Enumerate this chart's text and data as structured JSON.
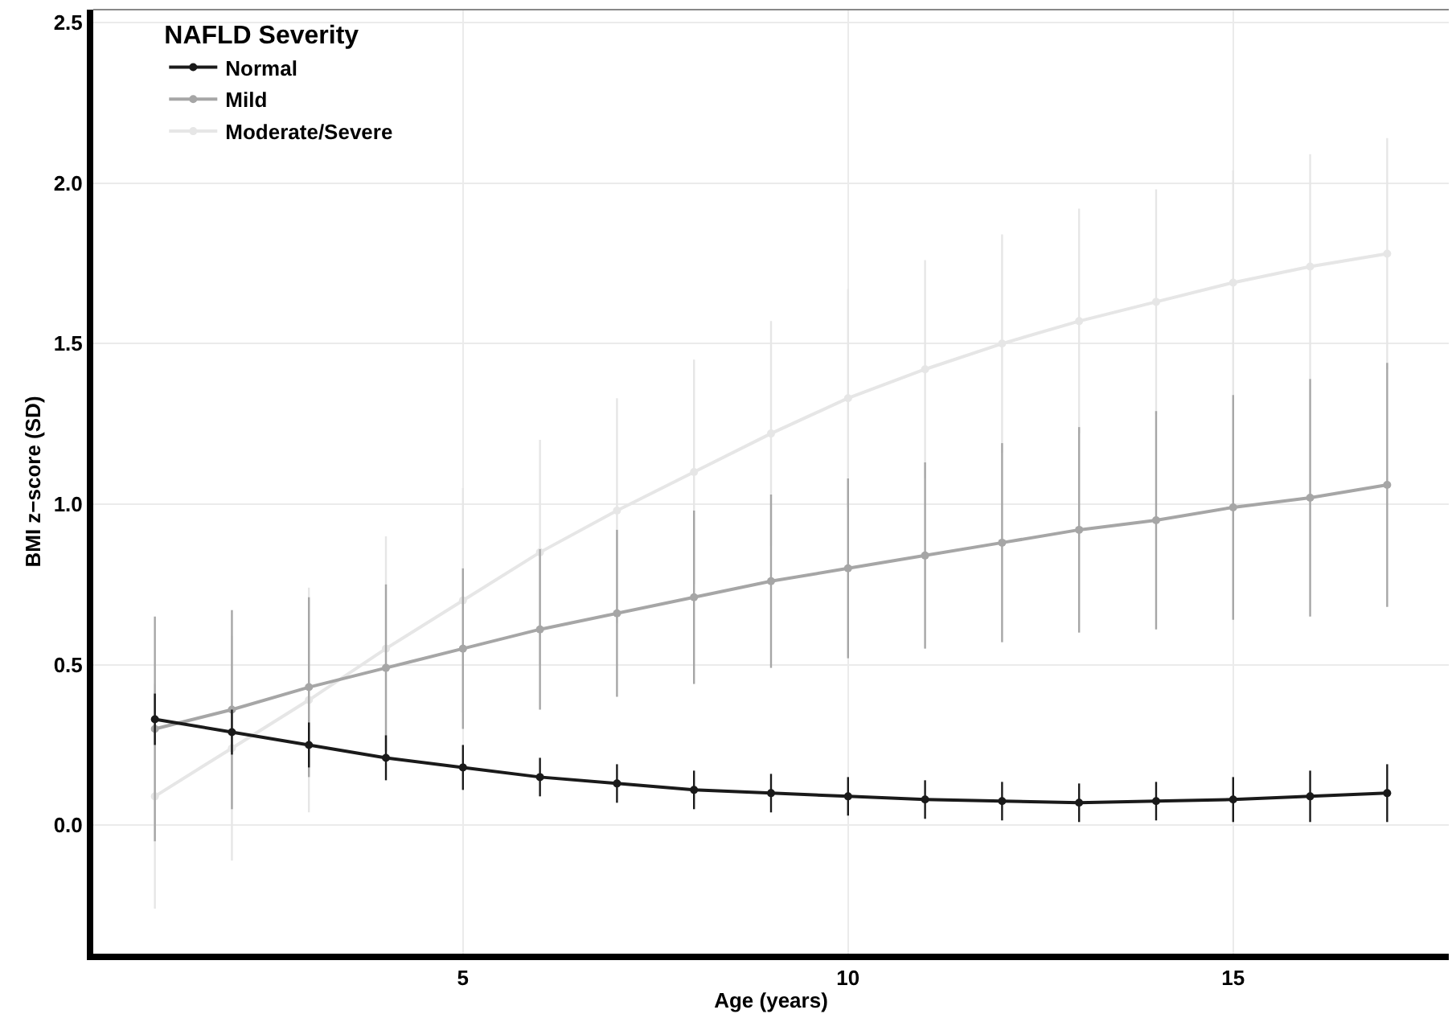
{
  "chart_data": {
    "type": "line",
    "xlabel": "Age (years)",
    "ylabel": "BMI z−score (SD)",
    "legend_title": "NAFLD Severity",
    "x": [
      1,
      2,
      3,
      4,
      5,
      6,
      7,
      8,
      9,
      10,
      11,
      12,
      13,
      14,
      15,
      16,
      17
    ],
    "series": [
      {
        "name": "Normal",
        "color": "#1a1a1a",
        "values": [
          0.33,
          0.29,
          0.25,
          0.21,
          0.18,
          0.15,
          0.13,
          0.11,
          0.1,
          0.09,
          0.08,
          0.075,
          0.07,
          0.075,
          0.08,
          0.09,
          0.1
        ],
        "errors": [
          0.08,
          0.07,
          0.07,
          0.07,
          0.07,
          0.06,
          0.06,
          0.06,
          0.06,
          0.06,
          0.06,
          0.06,
          0.06,
          0.06,
          0.07,
          0.08,
          0.09
        ]
      },
      {
        "name": "Mild",
        "color": "#a6a6a6",
        "values": [
          0.3,
          0.36,
          0.43,
          0.49,
          0.55,
          0.61,
          0.66,
          0.71,
          0.76,
          0.8,
          0.84,
          0.88,
          0.92,
          0.95,
          0.99,
          1.02,
          1.06
        ],
        "errors": [
          0.35,
          0.31,
          0.28,
          0.26,
          0.25,
          0.25,
          0.26,
          0.27,
          0.27,
          0.28,
          0.29,
          0.31,
          0.32,
          0.34,
          0.35,
          0.37,
          0.38
        ]
      },
      {
        "name": "Moderate/Severe",
        "color": "#e6e6e6",
        "values": [
          0.09,
          0.24,
          0.39,
          0.55,
          0.7,
          0.85,
          0.98,
          1.1,
          1.22,
          1.33,
          1.42,
          1.5,
          1.57,
          1.63,
          1.69,
          1.74,
          1.78
        ],
        "errors": [
          0.35,
          0.35,
          0.35,
          0.35,
          0.35,
          0.35,
          0.35,
          0.35,
          0.35,
          0.34,
          0.34,
          0.34,
          0.35,
          0.35,
          0.35,
          0.35,
          0.36
        ]
      }
    ],
    "xlim": [
      0.2,
      17.8
    ],
    "xticks": [
      5,
      10,
      15
    ],
    "ylim": [
      -0.4,
      2.54
    ],
    "yticks": [
      {
        "value": 0,
        "label": "0.0"
      },
      {
        "value": 0.5,
        "label": "0.5"
      },
      {
        "value": 1,
        "label": "1.0"
      },
      {
        "value": 1.5,
        "label": "1.5"
      },
      {
        "value": 2,
        "label": "2.0"
      },
      {
        "value": 2.5,
        "label": "2.5"
      }
    ],
    "grid": true,
    "legend": "top left",
    "marker": "circle",
    "line_style": "solid"
  }
}
